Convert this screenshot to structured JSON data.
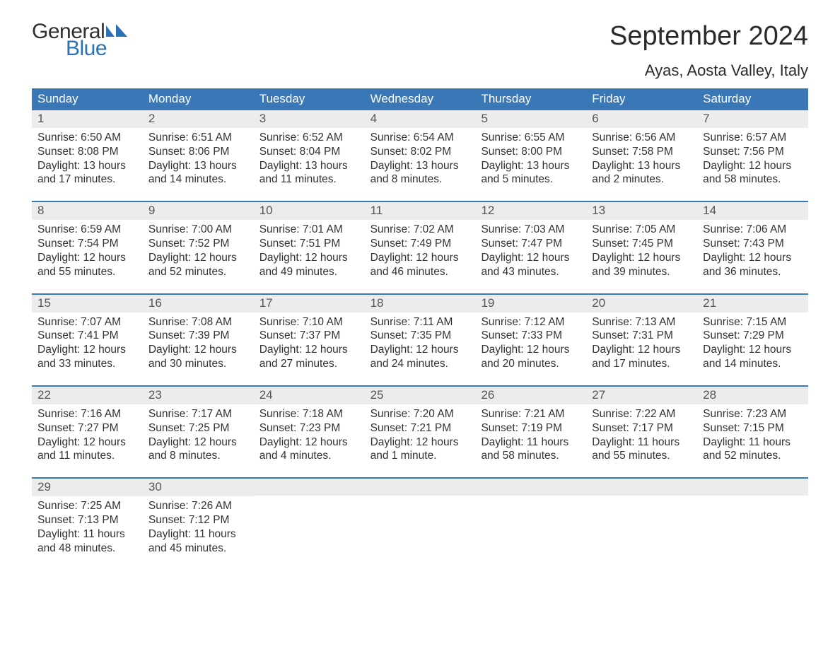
{
  "logo": {
    "text_top": "General",
    "text_bottom": "Blue",
    "flag_color": "#2a71b8"
  },
  "title": "September 2024",
  "location": "Ayas, Aosta Valley, Italy",
  "colors": {
    "header_bg": "#3a77b7",
    "header_text": "#ffffff",
    "daynum_bg": "#ececec",
    "text": "#333333",
    "accent_line": "#3a77b7"
  },
  "day_headers": [
    "Sunday",
    "Monday",
    "Tuesday",
    "Wednesday",
    "Thursday",
    "Friday",
    "Saturday"
  ],
  "weeks": [
    [
      {
        "n": "1",
        "sunrise": "Sunrise: 6:50 AM",
        "sunset": "Sunset: 8:08 PM",
        "d1": "Daylight: 13 hours",
        "d2": "and 17 minutes."
      },
      {
        "n": "2",
        "sunrise": "Sunrise: 6:51 AM",
        "sunset": "Sunset: 8:06 PM",
        "d1": "Daylight: 13 hours",
        "d2": "and 14 minutes."
      },
      {
        "n": "3",
        "sunrise": "Sunrise: 6:52 AM",
        "sunset": "Sunset: 8:04 PM",
        "d1": "Daylight: 13 hours",
        "d2": "and 11 minutes."
      },
      {
        "n": "4",
        "sunrise": "Sunrise: 6:54 AM",
        "sunset": "Sunset: 8:02 PM",
        "d1": "Daylight: 13 hours",
        "d2": "and 8 minutes."
      },
      {
        "n": "5",
        "sunrise": "Sunrise: 6:55 AM",
        "sunset": "Sunset: 8:00 PM",
        "d1": "Daylight: 13 hours",
        "d2": "and 5 minutes."
      },
      {
        "n": "6",
        "sunrise": "Sunrise: 6:56 AM",
        "sunset": "Sunset: 7:58 PM",
        "d1": "Daylight: 13 hours",
        "d2": "and 2 minutes."
      },
      {
        "n": "7",
        "sunrise": "Sunrise: 6:57 AM",
        "sunset": "Sunset: 7:56 PM",
        "d1": "Daylight: 12 hours",
        "d2": "and 58 minutes."
      }
    ],
    [
      {
        "n": "8",
        "sunrise": "Sunrise: 6:59 AM",
        "sunset": "Sunset: 7:54 PM",
        "d1": "Daylight: 12 hours",
        "d2": "and 55 minutes."
      },
      {
        "n": "9",
        "sunrise": "Sunrise: 7:00 AM",
        "sunset": "Sunset: 7:52 PM",
        "d1": "Daylight: 12 hours",
        "d2": "and 52 minutes."
      },
      {
        "n": "10",
        "sunrise": "Sunrise: 7:01 AM",
        "sunset": "Sunset: 7:51 PM",
        "d1": "Daylight: 12 hours",
        "d2": "and 49 minutes."
      },
      {
        "n": "11",
        "sunrise": "Sunrise: 7:02 AM",
        "sunset": "Sunset: 7:49 PM",
        "d1": "Daylight: 12 hours",
        "d2": "and 46 minutes."
      },
      {
        "n": "12",
        "sunrise": "Sunrise: 7:03 AM",
        "sunset": "Sunset: 7:47 PM",
        "d1": "Daylight: 12 hours",
        "d2": "and 43 minutes."
      },
      {
        "n": "13",
        "sunrise": "Sunrise: 7:05 AM",
        "sunset": "Sunset: 7:45 PM",
        "d1": "Daylight: 12 hours",
        "d2": "and 39 minutes."
      },
      {
        "n": "14",
        "sunrise": "Sunrise: 7:06 AM",
        "sunset": "Sunset: 7:43 PM",
        "d1": "Daylight: 12 hours",
        "d2": "and 36 minutes."
      }
    ],
    [
      {
        "n": "15",
        "sunrise": "Sunrise: 7:07 AM",
        "sunset": "Sunset: 7:41 PM",
        "d1": "Daylight: 12 hours",
        "d2": "and 33 minutes."
      },
      {
        "n": "16",
        "sunrise": "Sunrise: 7:08 AM",
        "sunset": "Sunset: 7:39 PM",
        "d1": "Daylight: 12 hours",
        "d2": "and 30 minutes."
      },
      {
        "n": "17",
        "sunrise": "Sunrise: 7:10 AM",
        "sunset": "Sunset: 7:37 PM",
        "d1": "Daylight: 12 hours",
        "d2": "and 27 minutes."
      },
      {
        "n": "18",
        "sunrise": "Sunrise: 7:11 AM",
        "sunset": "Sunset: 7:35 PM",
        "d1": "Daylight: 12 hours",
        "d2": "and 24 minutes."
      },
      {
        "n": "19",
        "sunrise": "Sunrise: 7:12 AM",
        "sunset": "Sunset: 7:33 PM",
        "d1": "Daylight: 12 hours",
        "d2": "and 20 minutes."
      },
      {
        "n": "20",
        "sunrise": "Sunrise: 7:13 AM",
        "sunset": "Sunset: 7:31 PM",
        "d1": "Daylight: 12 hours",
        "d2": "and 17 minutes."
      },
      {
        "n": "21",
        "sunrise": "Sunrise: 7:15 AM",
        "sunset": "Sunset: 7:29 PM",
        "d1": "Daylight: 12 hours",
        "d2": "and 14 minutes."
      }
    ],
    [
      {
        "n": "22",
        "sunrise": "Sunrise: 7:16 AM",
        "sunset": "Sunset: 7:27 PM",
        "d1": "Daylight: 12 hours",
        "d2": "and 11 minutes."
      },
      {
        "n": "23",
        "sunrise": "Sunrise: 7:17 AM",
        "sunset": "Sunset: 7:25 PM",
        "d1": "Daylight: 12 hours",
        "d2": "and 8 minutes."
      },
      {
        "n": "24",
        "sunrise": "Sunrise: 7:18 AM",
        "sunset": "Sunset: 7:23 PM",
        "d1": "Daylight: 12 hours",
        "d2": "and 4 minutes."
      },
      {
        "n": "25",
        "sunrise": "Sunrise: 7:20 AM",
        "sunset": "Sunset: 7:21 PM",
        "d1": "Daylight: 12 hours",
        "d2": "and 1 minute."
      },
      {
        "n": "26",
        "sunrise": "Sunrise: 7:21 AM",
        "sunset": "Sunset: 7:19 PM",
        "d1": "Daylight: 11 hours",
        "d2": "and 58 minutes."
      },
      {
        "n": "27",
        "sunrise": "Sunrise: 7:22 AM",
        "sunset": "Sunset: 7:17 PM",
        "d1": "Daylight: 11 hours",
        "d2": "and 55 minutes."
      },
      {
        "n": "28",
        "sunrise": "Sunrise: 7:23 AM",
        "sunset": "Sunset: 7:15 PM",
        "d1": "Daylight: 11 hours",
        "d2": "and 52 minutes."
      }
    ],
    [
      {
        "n": "29",
        "sunrise": "Sunrise: 7:25 AM",
        "sunset": "Sunset: 7:13 PM",
        "d1": "Daylight: 11 hours",
        "d2": "and 48 minutes."
      },
      {
        "n": "30",
        "sunrise": "Sunrise: 7:26 AM",
        "sunset": "Sunset: 7:12 PM",
        "d1": "Daylight: 11 hours",
        "d2": "and 45 minutes."
      },
      {
        "empty": true
      },
      {
        "empty": true
      },
      {
        "empty": true
      },
      {
        "empty": true
      },
      {
        "empty": true
      }
    ]
  ]
}
